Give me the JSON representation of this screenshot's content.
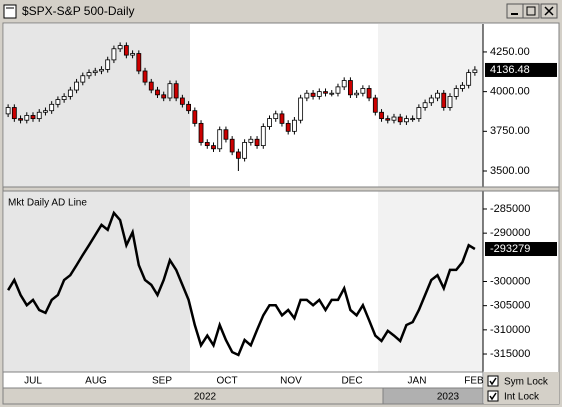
{
  "chart_data": [
    {
      "type": "candlestick",
      "title": "$SPX-S&P 500-Daily",
      "open": [
        3860,
        3900,
        3830,
        3820,
        3850,
        3830,
        3870,
        3880,
        3920,
        3950,
        3970,
        4010,
        4060,
        4100,
        4120,
        4130,
        4140,
        4200,
        4270,
        4290,
        4230,
        4240,
        4130,
        4060,
        4010,
        3980,
        3960,
        4050,
        3960,
        3920,
        3880,
        3800,
        3680,
        3660,
        3640,
        3760,
        3700,
        3620,
        3580,
        3680,
        3700,
        3660,
        3780,
        3830,
        3860,
        3800,
        3750,
        3820,
        3960,
        3990,
        3970,
        4000,
        3990,
        3990,
        4030,
        4070,
        3980,
        3990,
        4020,
        3960,
        3870,
        3830,
        3820,
        3840,
        3810,
        3830,
        3830,
        3900,
        3930,
        3960,
        3990,
        3900,
        3970,
        4020,
        4040,
        4120
      ],
      "high": [
        3920,
        3920,
        3850,
        3870,
        3870,
        3890,
        3900,
        3940,
        3970,
        3990,
        4030,
        4080,
        4120,
        4140,
        4150,
        4160,
        4220,
        4290,
        4310,
        4310,
        4260,
        4260,
        4150,
        4080,
        4030,
        4000,
        4070,
        4070,
        3980,
        3940,
        3900,
        3820,
        3700,
        3680,
        3780,
        3780,
        3720,
        3640,
        3700,
        3720,
        3720,
        3800,
        3850,
        3880,
        3880,
        3820,
        3840,
        3980,
        4010,
        4010,
        4020,
        4020,
        4010,
        4050,
        4090,
        4090,
        4010,
        4040,
        4040,
        3980,
        3890,
        3850,
        3860,
        3860,
        3850,
        3850,
        3920,
        3950,
        3980,
        4010,
        4010,
        3990,
        4040,
        4060,
        4140,
        4160
      ],
      "low": [
        3840,
        3810,
        3800,
        3800,
        3810,
        3810,
        3850,
        3860,
        3900,
        3930,
        3950,
        3990,
        4040,
        4080,
        4100,
        4110,
        4120,
        4180,
        4250,
        4210,
        4210,
        4110,
        4040,
        3990,
        3960,
        3940,
        3940,
        3940,
        3900,
        3860,
        3780,
        3660,
        3640,
        3620,
        3620,
        3680,
        3600,
        3500,
        3560,
        3660,
        3640,
        3640,
        3760,
        3810,
        3780,
        3730,
        3730,
        3800,
        3940,
        3950,
        3950,
        3970,
        3970,
        3970,
        4010,
        3960,
        3960,
        3970,
        3940,
        3850,
        3810,
        3800,
        3800,
        3790,
        3790,
        3810,
        3810,
        3880,
        3910,
        3940,
        3880,
        3880,
        3950,
        4000,
        4020,
        4100
      ],
      "close": [
        3900,
        3830,
        3820,
        3850,
        3830,
        3870,
        3880,
        3920,
        3950,
        3970,
        4010,
        4060,
        4100,
        4120,
        4130,
        4140,
        4200,
        4270,
        4290,
        4230,
        4240,
        4130,
        4060,
        4010,
        3980,
        3960,
        4050,
        3960,
        3920,
        3880,
        3800,
        3680,
        3660,
        3640,
        3760,
        3700,
        3620,
        3580,
        3680,
        3700,
        3660,
        3780,
        3830,
        3860,
        3800,
        3750,
        3820,
        3960,
        3990,
        3970,
        4000,
        3990,
        3990,
        4030,
        4070,
        3980,
        3990,
        4020,
        3960,
        3870,
        3830,
        3820,
        3840,
        3810,
        3830,
        3830,
        3900,
        3930,
        3960,
        3990,
        3900,
        3970,
        4020,
        4040,
        4120,
        4136.48
      ],
      "up_color": "#ffffff",
      "down_color": "#cc0000",
      "outline_color": "#000000",
      "ylim": [
        3393,
        4426
      ],
      "yticks": [
        {
          "value": 3500,
          "label": "3500.00"
        },
        {
          "value": 3750,
          "label": "3750.00"
        },
        {
          "value": 4000,
          "label": "4000.00"
        },
        {
          "value": 4250,
          "label": "4250.00"
        }
      ]
    },
    {
      "type": "line",
      "title": "Mkt Daily AD Line",
      "color": "#000000",
      "values": [
        -301800,
        -299700,
        -302800,
        -304900,
        -303800,
        -305900,
        -306500,
        -303800,
        -302800,
        -299700,
        -298700,
        -296600,
        -294500,
        -292500,
        -290400,
        -288300,
        -289300,
        -285800,
        -287300,
        -292500,
        -289800,
        -296600,
        -299700,
        -300700,
        -302800,
        -299700,
        -295600,
        -297600,
        -300700,
        -303800,
        -309000,
        -313200,
        -311200,
        -313200,
        -309000,
        -312100,
        -314600,
        -315200,
        -312100,
        -313200,
        -310000,
        -307000,
        -304900,
        -304900,
        -307000,
        -305900,
        -307600,
        -303800,
        -303800,
        -304900,
        -303800,
        -305900,
        -303800,
        -303800,
        -301400,
        -305900,
        -307000,
        -304900,
        -308000,
        -311200,
        -312300,
        -310200,
        -311200,
        -312300,
        -309000,
        -308400,
        -305900,
        -302800,
        -299700,
        -298700,
        -301400,
        -297600,
        -297600,
        -296000,
        -292500,
        -293279
      ],
      "ylim": [
        -318720,
        -281280
      ],
      "yticks": [
        -315000,
        -310000,
        -305000,
        -300000,
        -290000,
        -285000
      ]
    }
  ],
  "x_axis": {
    "months": [
      "JUL",
      "AUG",
      "SEP",
      "OCT",
      "NOV",
      "DEC",
      "JAN",
      "FEB"
    ],
    "years": [
      "2022",
      "2023"
    ]
  },
  "controls": {
    "sym_lock": "Sym Lock",
    "int_lock": "Int Lock"
  }
}
